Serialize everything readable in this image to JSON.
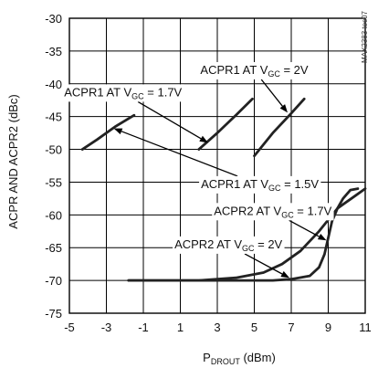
{
  "chart_data": {
    "type": "line",
    "xlabel_main": "P",
    "xlabel_sub": "DROUT",
    "xlabel_tail": " (dBm)",
    "ylabel": "ACPR AND ACPR2 (dBc)",
    "xlim": [
      -5,
      11
    ],
    "ylim": [
      -75,
      -30
    ],
    "xticks": [
      -5,
      -3,
      -1,
      1,
      3,
      5,
      7,
      9,
      11
    ],
    "yticks": [
      -30,
      -35,
      -40,
      -45,
      -50,
      -55,
      -60,
      -65,
      -70,
      -75
    ],
    "grid": true,
    "figure_id": "MAX2383 toc07",
    "series": [
      {
        "x": [
          -4.3,
          -3.5,
          -2.5,
          -1.5
        ],
        "y": [
          -50,
          -48.5,
          -46.5,
          -44.8
        ]
      },
      {
        "x": [
          2.0,
          3.0,
          4.0,
          4.9
        ],
        "y": [
          -50,
          -47.5,
          -44.8,
          -42.3
        ]
      },
      {
        "x": [
          5.0,
          6.0,
          7.0,
          7.7
        ],
        "y": [
          -51,
          -47.5,
          -44.5,
          -42.3
        ]
      },
      {
        "x": [
          -1.8,
          2,
          4,
          5.5,
          6.5,
          7.5,
          8.5,
          9.5,
          10.5,
          11
        ],
        "y": [
          -70,
          -70,
          -69.6,
          -68.8,
          -67.5,
          -65.5,
          -62.5,
          -59,
          -57,
          -56
        ]
      },
      {
        "x": [
          -1.8,
          2,
          4,
          6,
          7,
          8,
          8.5,
          8.8,
          9.0,
          9.2,
          9.5,
          9.8,
          10.2,
          10.6
        ],
        "y": [
          -70,
          -70,
          -70,
          -70,
          -69.8,
          -69.3,
          -68,
          -66,
          -63.5,
          -61,
          -59,
          -57.5,
          -56.2,
          -56
        ]
      }
    ],
    "annotations": [
      {
        "text": "ACPR1 AT V",
        "sub": "GC",
        "tail": " = 2V",
        "box_x": 5.0,
        "box_y": -37.8,
        "arrow_to": [
          6.8,
          -44.4
        ]
      },
      {
        "text": "ACPR1 AT V",
        "sub": "GC",
        "tail": " = 1.7V",
        "box_x": -2.1,
        "box_y": -41.2,
        "arrow_to": [
          2.5,
          -49.0
        ]
      },
      {
        "text": "ACPR1 AT V",
        "sub": "GC",
        "tail": " = 1.5V",
        "box_x": 5.3,
        "box_y": -55.2,
        "arrow_to": [
          -2.6,
          -46.8
        ]
      },
      {
        "text": "ACPR2 AT V",
        "sub": "GC",
        "tail": " = 1.7V",
        "box_x": 6.0,
        "box_y": -59.3,
        "arrow_to": [
          8.9,
          -63.9
        ]
      },
      {
        "text": "ACPR2 AT V",
        "sub": "GC",
        "tail": " = 2V",
        "box_x": 3.6,
        "box_y": -64.4,
        "arrow_to": [
          6.9,
          -69.6
        ]
      }
    ]
  }
}
